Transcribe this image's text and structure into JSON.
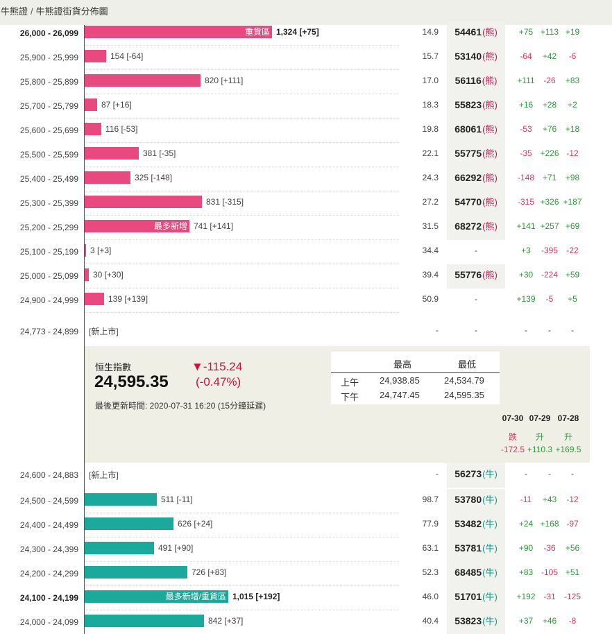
{
  "breadcrumb": {
    "part1": "牛熊證",
    "separator": "/",
    "part2": "牛熊證街貨分佈圖"
  },
  "max_count": 1324,
  "bear_rows": [
    {
      "range": "26,000 - 26,099",
      "bold": true,
      "count": "1,324 [+75]",
      "count_num": 1324,
      "tag": "重貨區",
      "ratio": "14.9",
      "code": "54461",
      "suffix": "(熊)",
      "changes": [
        "+75",
        "+113",
        "+19"
      ]
    },
    {
      "range": "25,900 - 25,999",
      "bold": false,
      "count": "154 [-64]",
      "count_num": 154,
      "tag": "",
      "ratio": "15.7",
      "code": "53140",
      "suffix": "(熊)",
      "changes": [
        "-64",
        "+42",
        "-6"
      ]
    },
    {
      "range": "25,800 - 25,899",
      "bold": false,
      "count": "820 [+111]",
      "count_num": 820,
      "tag": "",
      "ratio": "17.0",
      "code": "56116",
      "suffix": "(熊)",
      "changes": [
        "+111",
        "-26",
        "+83"
      ]
    },
    {
      "range": "25,700 - 25,799",
      "bold": false,
      "count": "87 [+16]",
      "count_num": 87,
      "tag": "",
      "ratio": "18.3",
      "code": "55823",
      "suffix": "(熊)",
      "changes": [
        "+16",
        "+28",
        "+2"
      ]
    },
    {
      "range": "25,600 - 25,699",
      "bold": false,
      "count": "116 [-53]",
      "count_num": 116,
      "tag": "",
      "ratio": "19.8",
      "code": "68061",
      "suffix": "(熊)",
      "changes": [
        "-53",
        "+76",
        "+18"
      ]
    },
    {
      "range": "25,500 - 25,599",
      "bold": false,
      "count": "381 [-35]",
      "count_num": 381,
      "tag": "",
      "ratio": "22.1",
      "code": "55775",
      "suffix": "(熊)",
      "changes": [
        "-35",
        "+226",
        "-12"
      ]
    },
    {
      "range": "25,400 - 25,499",
      "bold": false,
      "count": "325 [-148]",
      "count_num": 325,
      "tag": "",
      "ratio": "24.3",
      "code": "66292",
      "suffix": "(熊)",
      "changes": [
        "-148",
        "+71",
        "+98"
      ]
    },
    {
      "range": "25,300 - 25,399",
      "bold": false,
      "count": "831 [-315]",
      "count_num": 831,
      "tag": "",
      "ratio": "27.2",
      "code": "54770",
      "suffix": "(熊)",
      "changes": [
        "-315",
        "+326",
        "+187"
      ]
    },
    {
      "range": "25,200 - 25,299",
      "bold": false,
      "count": "741 [+141]",
      "count_num": 741,
      "tag": "最多新增",
      "ratio": "31.5",
      "code": "68272",
      "suffix": "(熊)",
      "changes": [
        "+141",
        "+257",
        "+69"
      ]
    },
    {
      "range": "25,100 - 25,199",
      "bold": false,
      "count": "3 [+3]",
      "count_num": 3,
      "tag": "",
      "ratio": "34.4",
      "code": "-",
      "suffix": "",
      "changes": [
        "+3",
        "-395",
        "-22"
      ]
    },
    {
      "range": "25,000 - 25,099",
      "bold": false,
      "count": "30 [+30]",
      "count_num": 30,
      "tag": "",
      "ratio": "39.4",
      "code": "55776",
      "suffix": "(熊)",
      "changes": [
        "+30",
        "-224",
        "+59"
      ]
    },
    {
      "range": "24,900 - 24,999",
      "bold": false,
      "count": "139 [+139]",
      "count_num": 139,
      "tag": "",
      "ratio": "50.9",
      "code": "-",
      "suffix": "",
      "changes": [
        "+139",
        "-5",
        "+5"
      ]
    }
  ],
  "bear_new_row": {
    "range": "24,773 - 24,899",
    "label": "[新上市]",
    "ratio": "-",
    "code": "-",
    "changes": [
      "-",
      "-",
      "-"
    ]
  },
  "index": {
    "name": "恒生指數",
    "value": "24,595.35",
    "change": "▼-115.24",
    "change_pct": "(-0.47%)",
    "updated": "最後更新時間: 2020-07-31 16:20 (15分鐘延遲)",
    "high_header": "最高",
    "low_header": "最低",
    "am_label": "上午",
    "am_high": "24,938.85",
    "am_low": "24,534.79",
    "pm_label": "下午",
    "pm_high": "24,747.45",
    "pm_low": "24,595.35",
    "history": [
      {
        "date": "07-30",
        "dir": "跌",
        "val": "-172.5"
      },
      {
        "date": "07-29",
        "dir": "升",
        "val": "+110.3"
      },
      {
        "date": "07-28",
        "dir": "升",
        "val": "+169.5"
      }
    ]
  },
  "bull_new_row": {
    "range": "24,600 - 24,883",
    "label": "[新上市]",
    "ratio": "-",
    "code": "56273",
    "suffix": "(牛)",
    "changes": [
      "-",
      "-",
      "-"
    ]
  },
  "bull_rows": [
    {
      "range": "24,500 - 24,599",
      "bold": false,
      "count": "511 [-11]",
      "count_num": 511,
      "tag": "",
      "ratio": "98.7",
      "code": "53780",
      "suffix": "(牛)",
      "changes": [
        "-11",
        "+43",
        "-12"
      ]
    },
    {
      "range": "24,400 - 24,499",
      "bold": false,
      "count": "626 [+24]",
      "count_num": 626,
      "tag": "",
      "ratio": "77.9",
      "code": "53482",
      "suffix": "(牛)",
      "changes": [
        "+24",
        "+168",
        "-97"
      ]
    },
    {
      "range": "24,300 - 24,399",
      "bold": false,
      "count": "491 [+90]",
      "count_num": 491,
      "tag": "",
      "ratio": "63.1",
      "code": "53781",
      "suffix": "(牛)",
      "changes": [
        "+90",
        "-36",
        "+56"
      ]
    },
    {
      "range": "24,200 - 24,299",
      "bold": false,
      "count": "726 [+83]",
      "count_num": 726,
      "tag": "",
      "ratio": "52.3",
      "code": "68485",
      "suffix": "(牛)",
      "changes": [
        "+83",
        "-105",
        "+51"
      ]
    },
    {
      "range": "24,100 - 24,199",
      "bold": true,
      "count": "1,015 [+192]",
      "count_num": 1015,
      "tag": "最多新增/重貨區",
      "ratio": "46.0",
      "code": "51701",
      "suffix": "(牛)",
      "changes": [
        "+192",
        "-31",
        "-125"
      ]
    },
    {
      "range": "24,000 - 24,099",
      "bold": false,
      "count": "842 [+37]",
      "count_num": 842,
      "tag": "",
      "ratio": "40.4",
      "code": "53823",
      "suffix": "(牛)",
      "changes": [
        "+37",
        "+46",
        "-8"
      ]
    }
  ],
  "colors": {
    "bear": "#e84a80",
    "bull": "#1aa99a",
    "up": "#2e9a3c",
    "down": "#d63a5e",
    "index_down": "#d0103a"
  }
}
